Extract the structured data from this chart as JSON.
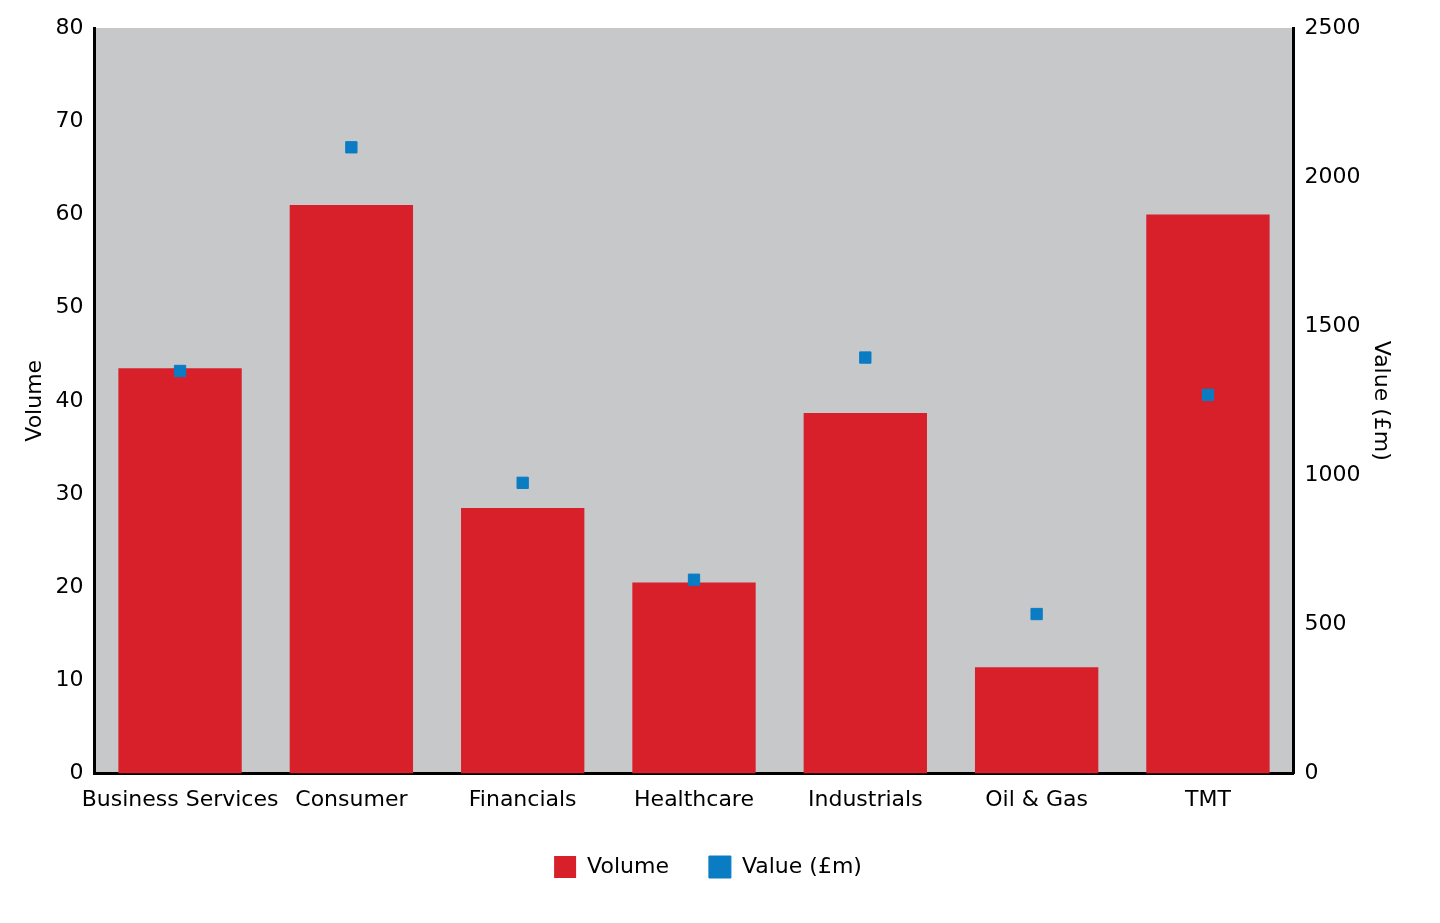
{
  "chart_data": {
    "type": "bar",
    "categories": [
      "Business Services",
      "Consumer",
      "Financials",
      "Healthcare",
      "Industrials",
      "Oil & Gas",
      "TMT"
    ],
    "series": [
      {
        "name": "Volume",
        "color": "#d8202a",
        "values": [
          43.5,
          61,
          28.5,
          20.5,
          38.7,
          11.4,
          60
        ]
      },
      {
        "name": "Value (£m)",
        "type": "scatter",
        "axis": "y2",
        "marker": "square",
        "color": "#0a7cc4",
        "values": [
          1350,
          2100,
          975,
          650,
          1395,
          535,
          1270
        ]
      }
    ],
    "ylabel": "Volume",
    "y2label": "Value (£m)",
    "ylim": [
      0,
      80
    ],
    "yticks": [
      0,
      10,
      20,
      30,
      40,
      50,
      60,
      70,
      80
    ],
    "y2lim": [
      0,
      2500
    ],
    "y2ticks": [
      0,
      500,
      1000,
      1500,
      2000,
      2500
    ],
    "grid": false,
    "legend": "bottom"
  }
}
